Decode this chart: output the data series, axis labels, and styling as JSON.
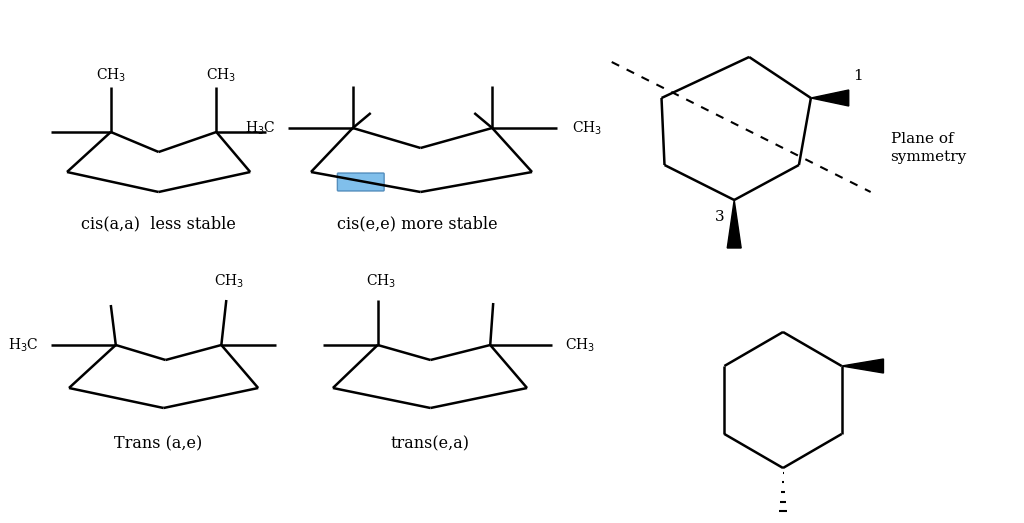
{
  "bg_color": "#ffffff",
  "lw": 1.8,
  "lw_thick": 3.5,
  "structures": {
    "cis_aa_label": "cis(a,a)  less stable",
    "cis_ee_label": "cis(e,e) more stable",
    "trans_ae_label": "Trans (a,e)",
    "trans_ea_label": "trans(e,a)",
    "plane_label": "Plane of\nsymmetry",
    "num1": "1",
    "num3": "3"
  },
  "blue_rect_color": "#6ab4e8"
}
